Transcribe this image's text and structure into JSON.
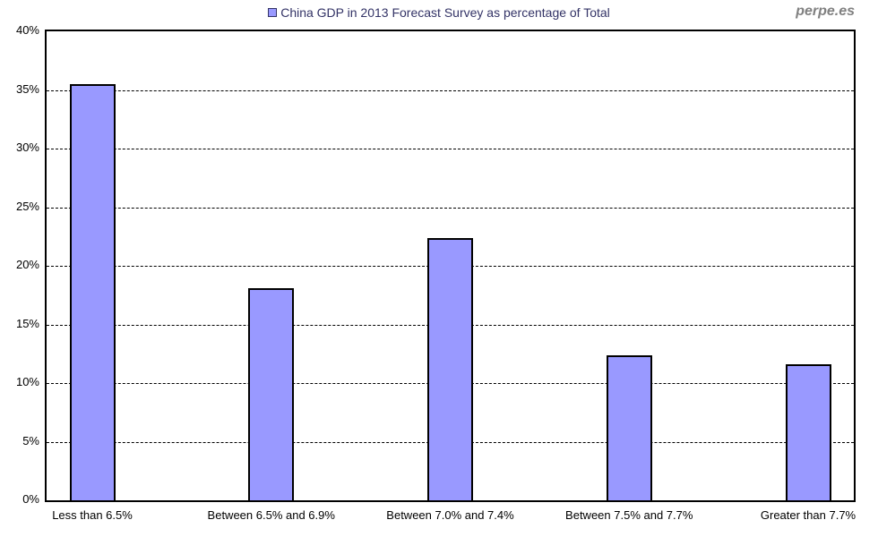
{
  "watermark": "perpe.es",
  "chart_data": {
    "type": "bar",
    "title": "China GDP in 2013 Forecast Survey as percentage of Total",
    "categories": [
      "Less than 6.5%",
      "Between 6.5% and 6.9%",
      "Between 7.0% and 7.4%",
      "Between 7.5% and 7.7%",
      "Greater than 7.7%"
    ],
    "values": [
      35.5,
      18.1,
      22.4,
      12.4,
      11.6
    ],
    "value_unit": "%",
    "xlabel": "",
    "ylabel": "",
    "ylim": [
      0,
      40
    ],
    "ytick_step": 5,
    "ytick_labels": [
      "0%",
      "5%",
      "10%",
      "15%",
      "20%",
      "25%",
      "30%",
      "35%",
      "40%"
    ],
    "grid": "dashed-horizontal",
    "legend_position": "top-center",
    "colors": {
      "bar_fill": "#9999FF",
      "bar_border": "#000000",
      "title_text": "#333366",
      "axis_text": "#000000",
      "watermark_text": "#808080",
      "gridline": "#000000",
      "plot_border": "#000000",
      "background": "#FFFFFF"
    }
  }
}
